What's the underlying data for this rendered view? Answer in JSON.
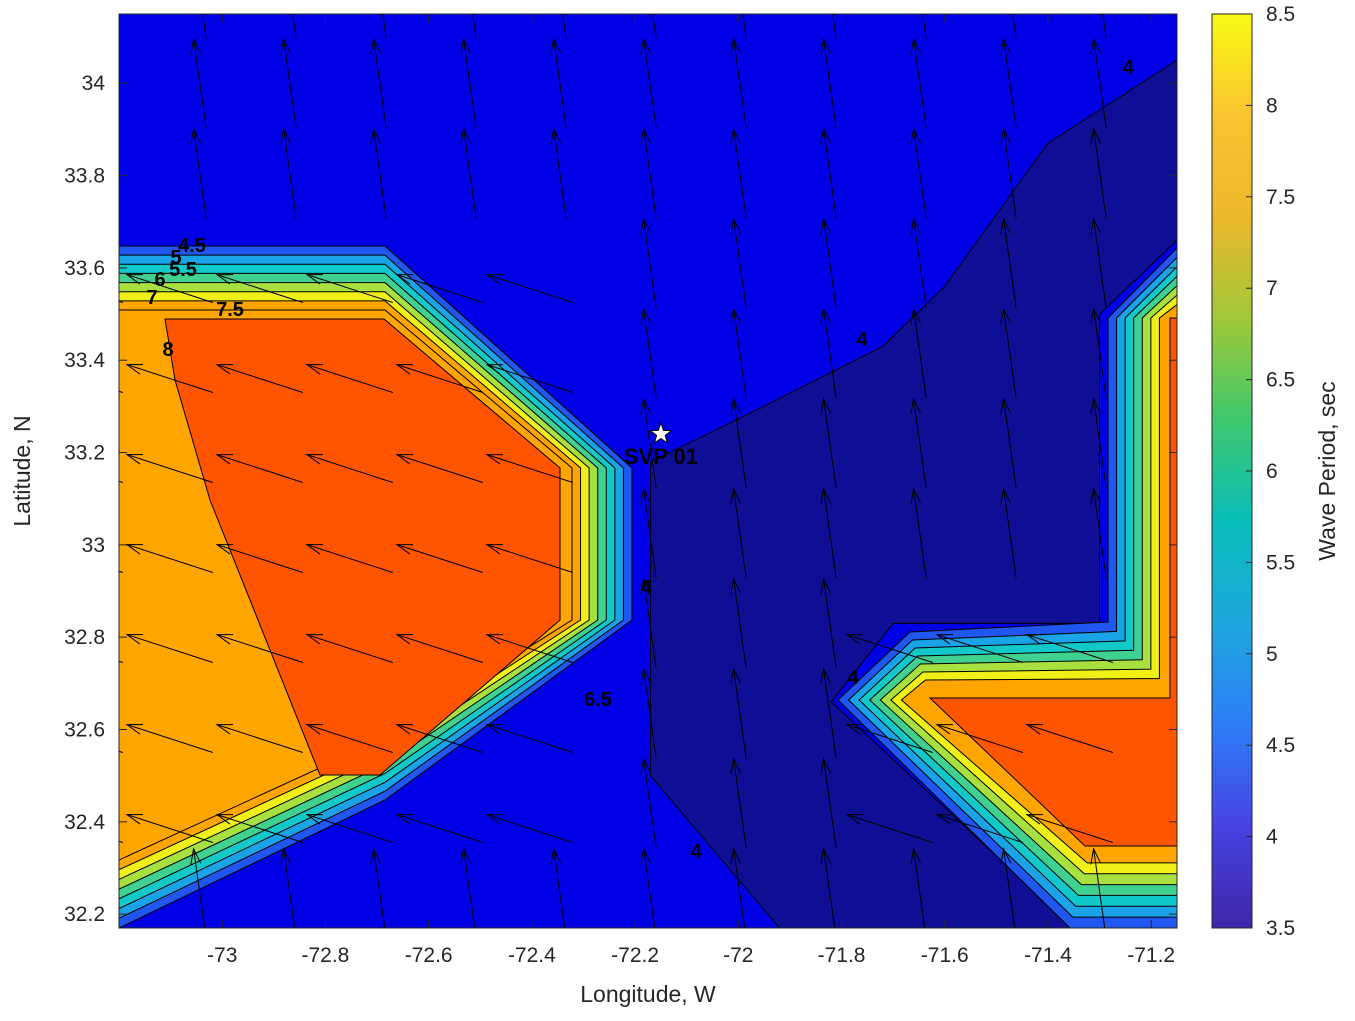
{
  "chart_data": {
    "type": "filled-contour",
    "xlabel": "Longitude, W",
    "ylabel": "Latitude, N",
    "colorbar_label": "Wave Period, sec",
    "xlim": [
      -73.2,
      -71.15
    ],
    "ylim": [
      32.17,
      34.15
    ],
    "x_ticks": [
      -73,
      -72.8,
      -72.6,
      -72.4,
      -72.2,
      -72,
      -71.8,
      -71.6,
      -71.4,
      -71.2
    ],
    "y_ticks": [
      32.2,
      32.4,
      32.6,
      32.8,
      33,
      33.2,
      33.4,
      33.6,
      33.8,
      34
    ],
    "colorbar_range": [
      3.5,
      8.5
    ],
    "colorbar_ticks": [
      3.5,
      4,
      4.5,
      5,
      5.5,
      6,
      6.5,
      7,
      7.5,
      8,
      8.5
    ],
    "colormap": [
      "#3e26a8",
      "#4743e2",
      "#2d7df8",
      "#1ea8dd",
      "#08bdb9",
      "#3ec86e",
      "#a0c837",
      "#ecb82c",
      "#f9c430",
      "#f9fa14"
    ],
    "fill_colors": {
      "3.5": "#0f0f96",
      "4": "#0000e6",
      "4.5": "#1f57f0",
      "5": "#1aa3e6",
      "5.5": "#13c8c8",
      "6": "#40d090",
      "6.5": "#a8e040",
      "7": "#f0f018",
      "7.5": "#ffa500",
      "8": "#ff5500"
    },
    "period_field_levels": [
      3.5,
      4,
      4.5,
      5,
      5.5,
      6,
      6.5,
      7,
      7.5,
      8,
      8.5
    ],
    "regions": [
      {
        "name": "west-high-period",
        "max_level": 8,
        "boundary": [
          [
            -73.2,
            33.66
          ],
          [
            -72.66,
            33.66
          ],
          [
            -72.24,
            33.16
          ],
          [
            -72.24,
            32.84
          ],
          [
            -72.67,
            32.36
          ],
          [
            -73.2,
            32.17
          ]
        ]
      },
      {
        "name": "east-high-period",
        "max_level": 8,
        "boundary": [
          [
            -71.7,
            32.83
          ],
          [
            -71.3,
            32.83
          ],
          [
            -71.3,
            33.5
          ],
          [
            -71.15,
            33.66
          ],
          [
            -71.15,
            32.17
          ],
          [
            -71.35,
            32.17
          ],
          [
            -71.82,
            32.66
          ]
        ]
      },
      {
        "name": "central-low-period",
        "max_level": 3.5,
        "boundary": [
          [
            -72.17,
            33.18
          ],
          [
            -71.95,
            33.3
          ],
          [
            -71.72,
            33.43
          ],
          [
            -71.6,
            33.56
          ],
          [
            -71.4,
            33.87
          ],
          [
            -71.15,
            34.05
          ],
          [
            -71.15,
            33.66
          ],
          [
            -71.3,
            33.5
          ],
          [
            -71.3,
            32.83
          ],
          [
            -71.7,
            32.83
          ],
          [
            -71.82,
            32.66
          ],
          [
            -71.35,
            32.17
          ],
          [
            -71.92,
            32.17
          ],
          [
            -72.17,
            32.5
          ]
        ]
      }
    ],
    "contour_labels": [
      "4",
      "4",
      "4",
      "4",
      "4",
      "4.5",
      "5",
      "5.5",
      "6",
      "6.5",
      "7",
      "7.5",
      "8"
    ],
    "marker": {
      "label": "SVP 01",
      "lon": -72.15,
      "lat": 33.24,
      "symbol": "white-star"
    },
    "vector_field": "wave direction arrows (black), pointing north in the low-period area and west-northwest in the high-period areas"
  }
}
